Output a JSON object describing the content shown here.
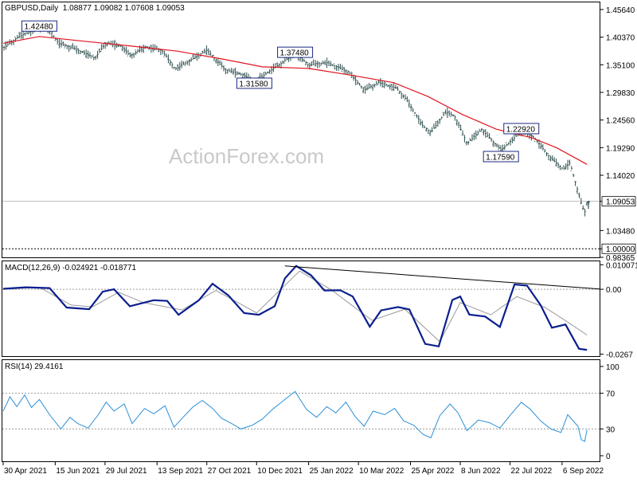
{
  "header": {
    "symbol_line": "GBPUSD,Daily  1.08877 1.09082 1.07608 1.09053",
    "watermark": "ActionForex.com"
  },
  "colors": {
    "bars": "#2f4f4f",
    "ma": "#e0141e",
    "macd_main": "#0b1f8f",
    "macd_signal": "#9a9a9a",
    "rsi": "#2a8fd6",
    "grid_dotted": "#9a9a9a"
  },
  "chart_data": [
    {
      "type": "ohlc",
      "title": "GBPUSD,Daily",
      "last_bar": {
        "open": 1.08877,
        "high": 1.09082,
        "low": 1.07608,
        "close": 1.09053
      },
      "ylim": [
        0.98365,
        1.47
      ],
      "y_ticks": [
        "1.45640",
        "1.40370",
        "1.35100",
        "1.29830",
        "1.24560",
        "1.19290",
        "1.14020",
        "1.09053",
        "1.03480",
        "1.00000",
        "0.98365"
      ],
      "x_ticks": [
        "30 Apr 2021",
        "15 Jun 2021",
        "29 Jul 2021",
        "13 Sep 2021",
        "27 Oct 2021",
        "10 Dec 2021",
        "25 Jan 2022",
        "10 Mar 2022",
        "25 Apr 2022",
        "8 Jun 2022",
        "22 Jul 2022",
        "6 Sep 2022"
      ],
      "reference_lines": [
        {
          "value": 1.09053,
          "style": "solid"
        },
        {
          "value": 1.0,
          "style": "dotted"
        }
      ],
      "annotations": [
        {
          "label": "1.42480",
          "date": "2021-06-01",
          "value": 1.4248
        },
        {
          "label": "1.37480",
          "date": "2022-01-13",
          "value": 1.3748
        },
        {
          "label": "1.31580",
          "date": "2021-12-08",
          "value": 1.3158
        },
        {
          "label": "1.22920",
          "date": "2022-08-01",
          "value": 1.2292
        },
        {
          "label": "1.17590",
          "date": "2022-07-14",
          "value": 1.1759
        }
      ],
      "series": [
        {
          "style": "ohlc-bars",
          "points": [
            [
              "2021-04-30",
              1.383
            ],
            [
              "2021-05-14",
              1.405
            ],
            [
              "2021-05-28",
              1.418
            ],
            [
              "2021-06-04",
              1.423
            ],
            [
              "2021-06-11",
              1.414
            ],
            [
              "2021-06-18",
              1.392
            ],
            [
              "2021-07-02",
              1.382
            ],
            [
              "2021-07-20",
              1.364
            ],
            [
              "2021-07-30",
              1.393
            ],
            [
              "2021-08-13",
              1.386
            ],
            [
              "2021-08-20",
              1.368
            ],
            [
              "2021-09-03",
              1.385
            ],
            [
              "2021-09-17",
              1.379
            ],
            [
              "2021-09-29",
              1.343
            ],
            [
              "2021-10-12",
              1.359
            ],
            [
              "2021-10-27",
              1.379
            ],
            [
              "2021-11-12",
              1.342
            ],
            [
              "2021-11-29",
              1.331
            ],
            [
              "2021-12-08",
              1.318
            ],
            [
              "2021-12-24",
              1.343
            ],
            [
              "2022-01-13",
              1.372
            ],
            [
              "2022-01-25",
              1.351
            ],
            [
              "2022-02-10",
              1.355
            ],
            [
              "2022-03-01",
              1.338
            ],
            [
              "2022-03-15",
              1.303
            ],
            [
              "2022-03-28",
              1.317
            ],
            [
              "2022-04-13",
              1.306
            ],
            [
              "2022-04-22",
              1.283
            ],
            [
              "2022-05-06",
              1.234
            ],
            [
              "2022-05-13",
              1.222
            ],
            [
              "2022-05-26",
              1.261
            ],
            [
              "2022-06-03",
              1.253
            ],
            [
              "2022-06-14",
              1.201
            ],
            [
              "2022-06-27",
              1.228
            ],
            [
              "2022-07-14",
              1.188
            ],
            [
              "2022-08-01",
              1.224
            ],
            [
              "2022-08-12",
              1.213
            ],
            [
              "2022-08-26",
              1.175
            ],
            [
              "2022-09-07",
              1.152
            ],
            [
              "2022-09-13",
              1.164
            ],
            [
              "2022-09-23",
              1.086
            ],
            [
              "2022-09-26",
              1.069
            ],
            [
              "2022-09-28",
              1.089
            ]
          ]
        },
        {
          "name": "",
          "style": "moving-average",
          "points": [
            [
              "2021-04-30",
              1.392
            ],
            [
              "2021-06-01",
              1.405
            ],
            [
              "2021-07-10",
              1.396
            ],
            [
              "2021-08-20",
              1.387
            ],
            [
              "2021-10-01",
              1.377
            ],
            [
              "2021-11-10",
              1.362
            ],
            [
              "2021-12-15",
              1.347
            ],
            [
              "2022-01-25",
              1.344
            ],
            [
              "2022-03-01",
              1.332
            ],
            [
              "2022-04-10",
              1.317
            ],
            [
              "2022-05-10",
              1.291
            ],
            [
              "2022-06-10",
              1.256
            ],
            [
              "2022-07-10",
              1.228
            ],
            [
              "2022-08-10",
              1.212
            ],
            [
              "2022-09-01",
              1.193
            ],
            [
              "2022-09-28",
              1.161
            ]
          ]
        }
      ]
    },
    {
      "type": "line",
      "title": "MACD(12,26,9) -0.024921 -0.018771",
      "ylim": [
        -0.0275,
        0.0115
      ],
      "y_ticks": [
        "0.010071",
        "0.00",
        "-0.0267"
      ],
      "trendline": [
        [
          "2022-01-04",
          0.0096
        ],
        [
          "2022-09-30",
          0.0001
        ]
      ],
      "series": [
        {
          "name": "",
          "style": "main",
          "points": [
            [
              "2021-04-30",
              0.0002
            ],
            [
              "2021-05-20",
              0.0008
            ],
            [
              "2021-06-10",
              0.0005
            ],
            [
              "2021-06-25",
              -0.0075
            ],
            [
              "2021-07-15",
              -0.0082
            ],
            [
              "2021-07-27",
              -0.001
            ],
            [
              "2021-08-06",
              0.0,
              "t"
            ],
            [
              "2021-08-20",
              -0.007
            ],
            [
              "2021-09-10",
              -0.0045
            ],
            [
              "2021-09-22",
              -0.0048
            ],
            [
              "2021-10-02",
              -0.0105
            ],
            [
              "2021-10-20",
              -0.0045
            ],
            [
              "2021-11-01",
              0.0023
            ],
            [
              "2021-11-15",
              -0.0025
            ],
            [
              "2021-11-29",
              -0.0098
            ],
            [
              "2021-12-12",
              -0.0105
            ],
            [
              "2021-12-26",
              -0.007
            ],
            [
              "2022-01-04",
              0.0045
            ],
            [
              "2022-01-14",
              0.0096
            ],
            [
              "2022-01-27",
              0.0058
            ],
            [
              "2022-02-08",
              -0.0005
            ],
            [
              "2022-02-22",
              -0.0004
            ],
            [
              "2022-03-05",
              -0.003
            ],
            [
              "2022-03-20",
              -0.0154
            ],
            [
              "2022-03-30",
              -0.0087
            ],
            [
              "2022-04-14",
              -0.0073
            ],
            [
              "2022-04-24",
              -0.0083
            ],
            [
              "2022-05-08",
              -0.0225
            ],
            [
              "2022-05-20",
              -0.0235
            ],
            [
              "2022-06-01",
              -0.0044
            ],
            [
              "2022-06-08",
              -0.003
            ],
            [
              "2022-06-16",
              -0.0104
            ],
            [
              "2022-06-30",
              -0.0112
            ],
            [
              "2022-07-13",
              -0.0155
            ],
            [
              "2022-07-26",
              0.002
            ],
            [
              "2022-08-06",
              0.0015
            ],
            [
              "2022-08-18",
              -0.0065
            ],
            [
              "2022-08-28",
              -0.0158
            ],
            [
              "2022-09-09",
              -0.0145
            ],
            [
              "2022-09-21",
              -0.0245
            ],
            [
              "2022-09-28",
              -0.0249
            ]
          ]
        },
        {
          "name": "",
          "style": "signal",
          "points": [
            [
              "2021-04-30",
              0.0
            ],
            [
              "2021-06-01",
              0.0008
            ],
            [
              "2021-06-29",
              -0.0065
            ],
            [
              "2021-07-18",
              -0.0072
            ],
            [
              "2021-08-10",
              -0.0012
            ],
            [
              "2021-09-01",
              -0.0055
            ],
            [
              "2021-10-05",
              -0.0085
            ],
            [
              "2021-11-04",
              -0.0005
            ],
            [
              "2021-12-10",
              -0.0097
            ],
            [
              "2022-01-17",
              0.0075
            ],
            [
              "2022-02-14",
              -0.0002
            ],
            [
              "2022-03-22",
              -0.0128
            ],
            [
              "2022-04-20",
              -0.0082
            ],
            [
              "2022-05-21",
              -0.0216
            ],
            [
              "2022-06-08",
              -0.0055
            ],
            [
              "2022-07-05",
              -0.0105
            ],
            [
              "2022-07-28",
              -0.003
            ],
            [
              "2022-08-22",
              -0.0075
            ],
            [
              "2022-09-12",
              -0.0138
            ],
            [
              "2022-09-28",
              -0.0188
            ]
          ]
        }
      ]
    },
    {
      "type": "line",
      "title": "RSI(14) 29.4161",
      "ylim": [
        0,
        100
      ],
      "y_ticks": [
        "100",
        "70",
        "30",
        "0"
      ],
      "reference_lines": [
        {
          "value": 70,
          "style": "dotted"
        },
        {
          "value": 30,
          "style": "dotted"
        }
      ],
      "series": [
        {
          "name": "",
          "style": "rsi",
          "points": [
            [
              "2021-04-30",
              50
            ],
            [
              "2021-05-06",
              66
            ],
            [
              "2021-05-12",
              55
            ],
            [
              "2021-05-19",
              68
            ],
            [
              "2021-05-25",
              54
            ],
            [
              "2021-06-01",
              63
            ],
            [
              "2021-06-10",
              46
            ],
            [
              "2021-06-20",
              30
            ],
            [
              "2021-06-28",
              43
            ],
            [
              "2021-07-05",
              36
            ],
            [
              "2021-07-14",
              31
            ],
            [
              "2021-07-23",
              46
            ],
            [
              "2021-07-30",
              60
            ],
            [
              "2021-08-06",
              50
            ],
            [
              "2021-08-15",
              58
            ],
            [
              "2021-08-22",
              36
            ],
            [
              "2021-09-02",
              53
            ],
            [
              "2021-09-10",
              47
            ],
            [
              "2021-09-20",
              56
            ],
            [
              "2021-09-28",
              32
            ],
            [
              "2021-10-06",
              43
            ],
            [
              "2021-10-15",
              55
            ],
            [
              "2021-10-23",
              62
            ],
            [
              "2021-11-01",
              53
            ],
            [
              "2021-11-09",
              42
            ],
            [
              "2021-11-18",
              36
            ],
            [
              "2021-11-26",
              30
            ],
            [
              "2021-12-06",
              34
            ],
            [
              "2021-12-15",
              41
            ],
            [
              "2021-12-24",
              52
            ],
            [
              "2022-01-04",
              63
            ],
            [
              "2022-01-13",
              72
            ],
            [
              "2022-01-23",
              52
            ],
            [
              "2022-02-01",
              43
            ],
            [
              "2022-02-10",
              55
            ],
            [
              "2022-02-18",
              48
            ],
            [
              "2022-02-27",
              60
            ],
            [
              "2022-03-07",
              44
            ],
            [
              "2022-03-15",
              33
            ],
            [
              "2022-03-23",
              50
            ],
            [
              "2022-04-02",
              46
            ],
            [
              "2022-04-11",
              53
            ],
            [
              "2022-04-19",
              39
            ],
            [
              "2022-04-28",
              34
            ],
            [
              "2022-05-06",
              24
            ],
            [
              "2022-05-13",
              20
            ],
            [
              "2022-05-21",
              45
            ],
            [
              "2022-05-30",
              58
            ],
            [
              "2022-06-06",
              48
            ],
            [
              "2022-06-14",
              28
            ],
            [
              "2022-06-24",
              40
            ],
            [
              "2022-07-04",
              37
            ],
            [
              "2022-07-13",
              31
            ],
            [
              "2022-07-22",
              45
            ],
            [
              "2022-08-01",
              60
            ],
            [
              "2022-08-09",
              52
            ],
            [
              "2022-08-18",
              39
            ],
            [
              "2022-08-27",
              30
            ],
            [
              "2022-09-05",
              26
            ],
            [
              "2022-09-11",
              46
            ],
            [
              "2022-09-20",
              33
            ],
            [
              "2022-09-23",
              18
            ],
            [
              "2022-09-26",
              16
            ],
            [
              "2022-09-28",
              29
            ]
          ]
        }
      ]
    }
  ]
}
